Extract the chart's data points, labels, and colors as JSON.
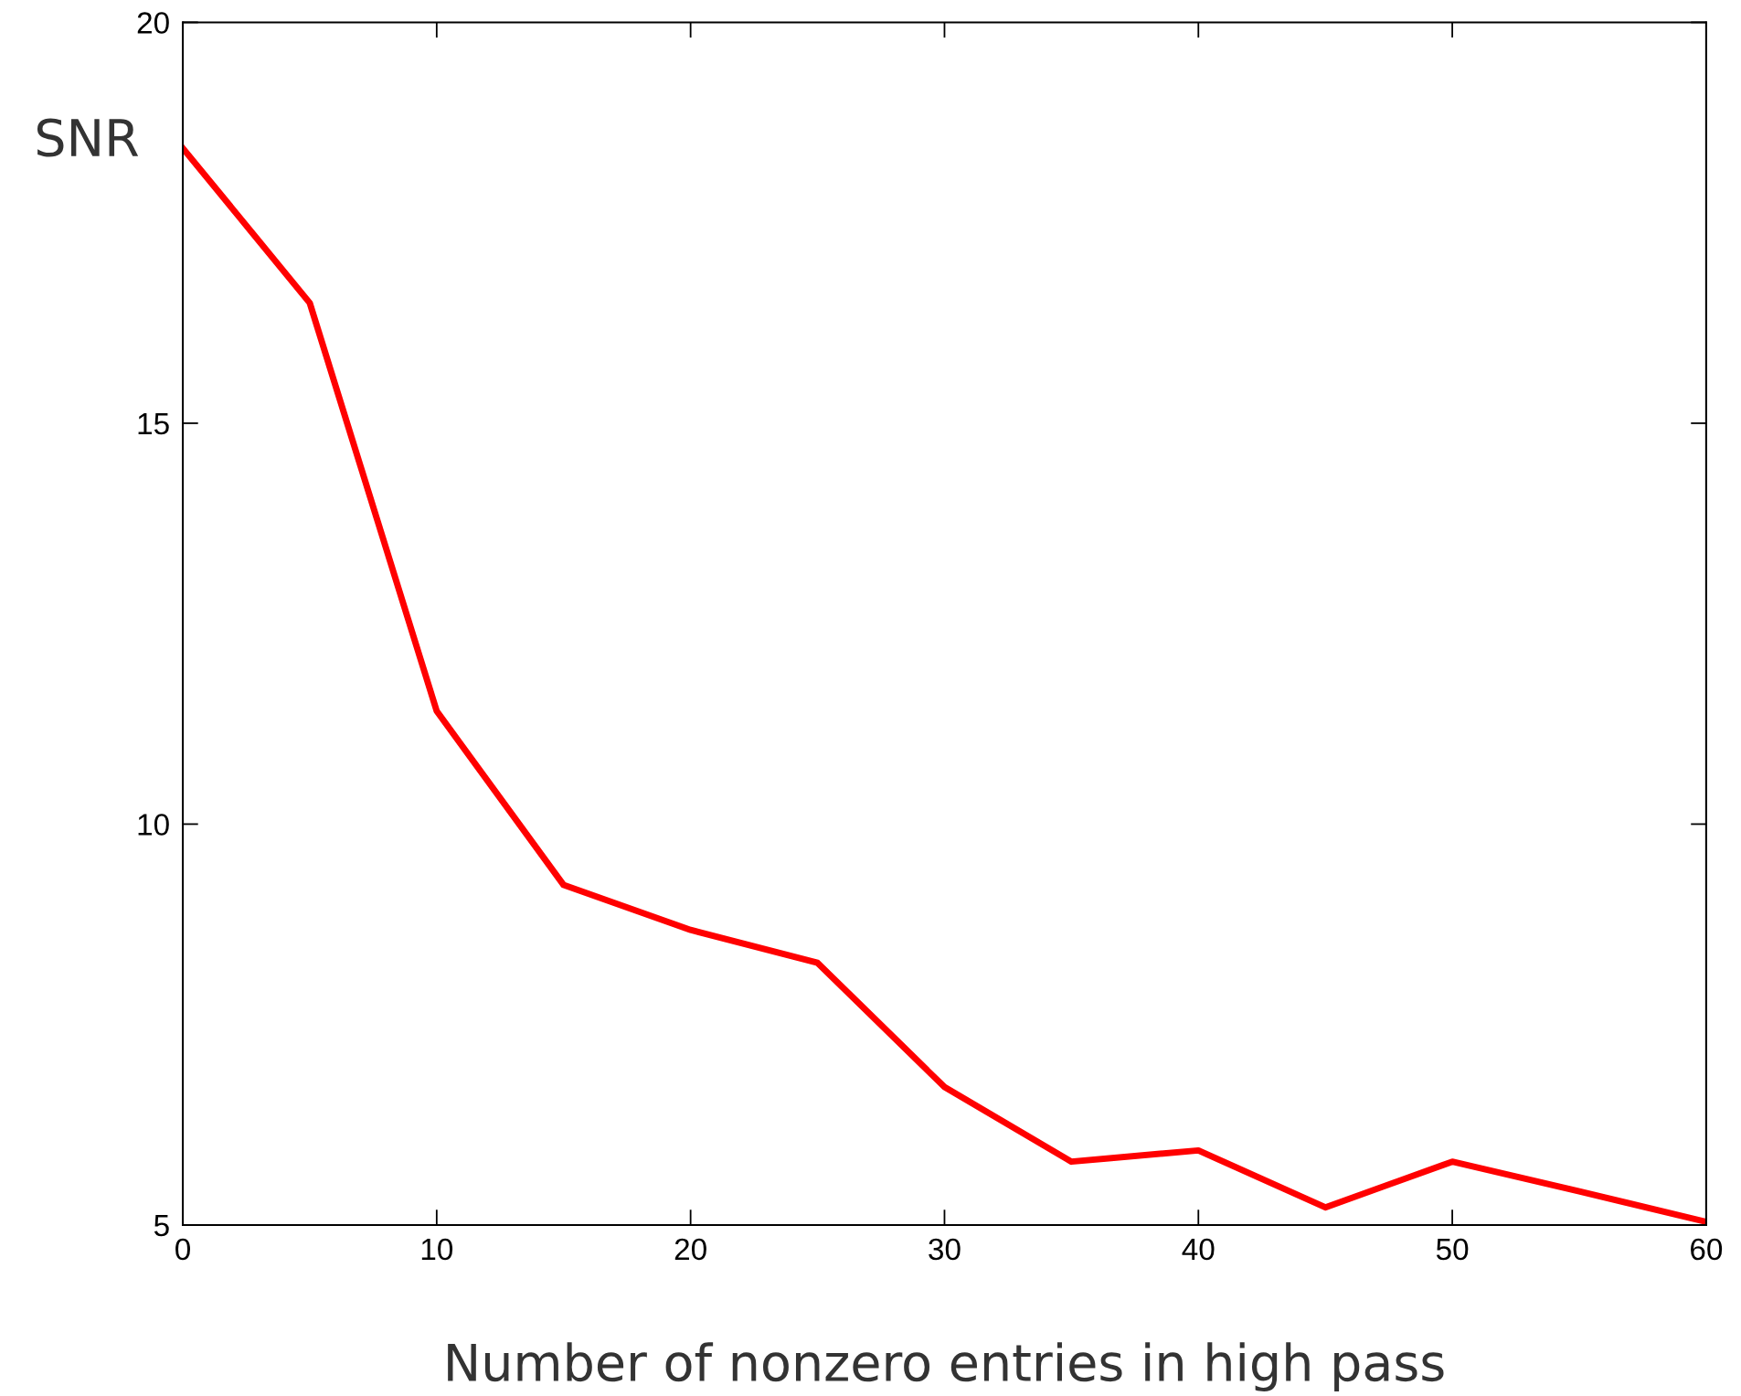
{
  "chart_data": {
    "type": "line",
    "xlabel": "Number of nonzero entries in high pass",
    "ylabel": "SNR",
    "x": [
      0,
      5,
      10,
      15,
      20,
      25,
      30,
      35,
      40,
      45,
      50,
      55,
      60
    ],
    "series": [
      {
        "color": "#ff0000",
        "values": [
          18.43,
          16.5,
          11.41,
          9.24,
          8.68,
          8.27,
          6.72,
          5.79,
          5.93,
          5.22,
          5.79,
          5.42,
          5.04
        ]
      }
    ],
    "xlim": [
      0,
      60
    ],
    "ylim": [
      5,
      20
    ],
    "xticks": [
      0,
      10,
      20,
      30,
      40,
      50,
      60
    ],
    "yticks": [
      5,
      10,
      15,
      20
    ],
    "grid": false,
    "legend": false,
    "marker": "none",
    "line_style": "solid"
  }
}
